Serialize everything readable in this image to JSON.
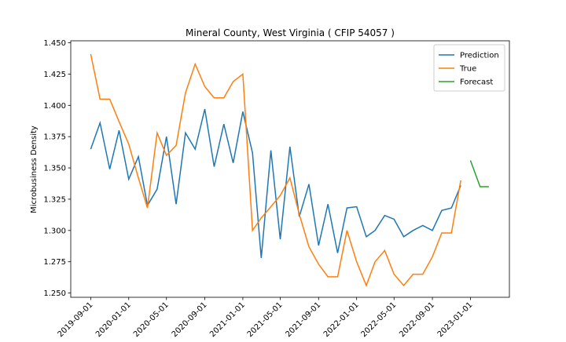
{
  "chart_data": {
    "type": "line",
    "title": "Mineral County, West Virginia ( CFIP 54057 )",
    "y_label": "Microbusiness Density",
    "x": [
      "2019-09-01",
      "2019-10-01",
      "2019-11-01",
      "2019-12-01",
      "2020-01-01",
      "2020-02-01",
      "2020-03-01",
      "2020-04-01",
      "2020-05-01",
      "2020-06-01",
      "2020-07-01",
      "2020-08-01",
      "2020-09-01",
      "2020-10-01",
      "2020-11-01",
      "2020-12-01",
      "2021-01-01",
      "2021-02-01",
      "2021-03-01",
      "2021-04-01",
      "2021-05-01",
      "2021-06-01",
      "2021-07-01",
      "2021-08-01",
      "2021-09-01",
      "2021-10-01",
      "2021-11-01",
      "2021-12-01",
      "2022-01-01",
      "2022-02-01",
      "2022-03-01",
      "2022-04-01",
      "2022-05-01",
      "2022-06-01",
      "2022-07-01",
      "2022-08-01",
      "2022-09-01",
      "2022-10-01",
      "2022-11-01",
      "2022-12-01",
      "2023-01-01",
      "2023-02-01",
      "2023-03-01"
    ],
    "series": [
      {
        "name": "Prediction",
        "color": "#1f77b4",
        "values": [
          1.365,
          1.386,
          1.349,
          1.38,
          1.341,
          1.359,
          1.32,
          1.333,
          1.375,
          1.321,
          1.378,
          1.365,
          1.397,
          1.351,
          1.385,
          1.354,
          1.395,
          1.362,
          1.278,
          1.364,
          1.293,
          1.367,
          1.311,
          1.337,
          1.288,
          1.321,
          1.282,
          1.318,
          1.319,
          1.295,
          1.3,
          1.312,
          1.309,
          1.295,
          1.3,
          1.304,
          1.3,
          1.316,
          1.318,
          1.336,
          null,
          null,
          null
        ]
      },
      {
        "name": "True",
        "color": "#ff7f0e",
        "values": [
          1.441,
          1.405,
          1.405,
          1.387,
          1.369,
          1.342,
          1.318,
          1.378,
          1.36,
          1.368,
          1.41,
          1.433,
          1.415,
          1.406,
          1.406,
          1.419,
          1.425,
          1.3,
          1.31,
          1.319,
          1.328,
          1.342,
          1.313,
          1.287,
          1.273,
          1.263,
          1.263,
          1.3,
          1.275,
          1.256,
          1.275,
          1.284,
          1.265,
          1.256,
          1.265,
          1.265,
          1.279,
          1.298,
          1.298,
          1.34,
          null,
          null,
          null
        ]
      },
      {
        "name": "Forecast",
        "color": "#2ca02c",
        "values": [
          null,
          null,
          null,
          null,
          null,
          null,
          null,
          null,
          null,
          null,
          null,
          null,
          null,
          null,
          null,
          null,
          null,
          null,
          null,
          null,
          null,
          null,
          null,
          null,
          null,
          null,
          null,
          null,
          null,
          null,
          null,
          null,
          null,
          null,
          null,
          null,
          null,
          null,
          null,
          null,
          1.356,
          1.335,
          1.335
        ]
      }
    ],
    "xlim": [
      "2019-06-29",
      "2023-05-06"
    ],
    "xticks": [
      "2019-09-01",
      "2020-01-01",
      "2020-05-01",
      "2020-09-01",
      "2021-01-01",
      "2021-05-01",
      "2021-09-01",
      "2022-01-01",
      "2022-05-01",
      "2022-09-01",
      "2023-01-01"
    ],
    "ylim": [
      1.2466,
      1.4516
    ],
    "yticks": [
      {
        "value": 1.25,
        "label": "1.250"
      },
      {
        "value": 1.275,
        "label": "1.275"
      },
      {
        "value": 1.3,
        "label": "1.300"
      },
      {
        "value": 1.325,
        "label": "1.325"
      },
      {
        "value": 1.35,
        "label": "1.350"
      },
      {
        "value": 1.375,
        "label": "1.375"
      },
      {
        "value": 1.4,
        "label": "1.400"
      },
      {
        "value": 1.425,
        "label": "1.425"
      },
      {
        "value": 1.45,
        "label": "1.450"
      }
    ],
    "legend": "upper right"
  }
}
